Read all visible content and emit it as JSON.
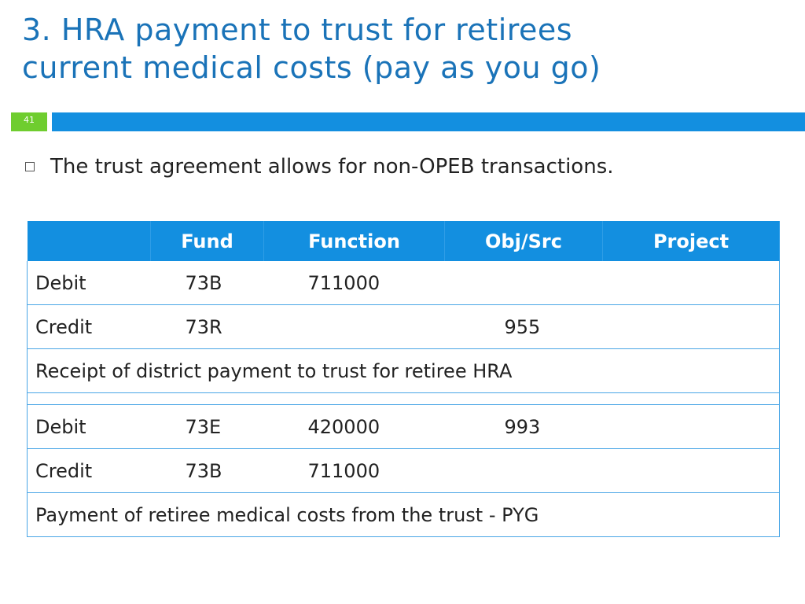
{
  "slide": {
    "title_line1": "3. HRA payment to trust for retirees",
    "title_line2": "current medical costs (pay as you go)",
    "number": "41",
    "bullet": "The trust agreement allows for non-OPEB transactions."
  },
  "colors": {
    "title": "#1a73b8",
    "header_bar": "#138fe0",
    "slide_number_bg": "#6fcd2f",
    "table_border": "#4aa6e6"
  },
  "table": {
    "headers": [
      "",
      "Fund",
      "Function",
      "Obj/Src",
      "Project"
    ],
    "group1": {
      "rows": [
        {
          "label": "Debit",
          "fund": "73B",
          "function": "711000",
          "obj": "",
          "project": ""
        },
        {
          "label": "Credit",
          "fund": "73R",
          "function": "",
          "obj": "955",
          "project": ""
        }
      ],
      "note": "Receipt of district payment to trust for retiree HRA"
    },
    "group2": {
      "rows": [
        {
          "label": "Debit",
          "fund": "73E",
          "function": "420000",
          "obj": "993",
          "project": ""
        },
        {
          "label": "Credit",
          "fund": "73B",
          "function": "711000",
          "obj": "",
          "project": ""
        }
      ],
      "note": "Payment of retiree medical costs from the trust - PYG"
    }
  }
}
